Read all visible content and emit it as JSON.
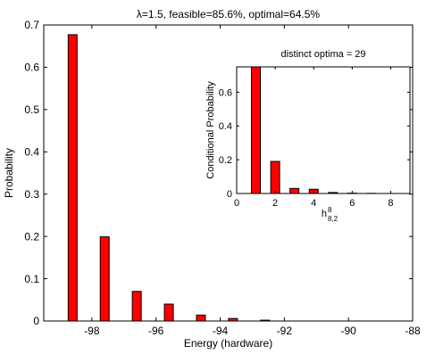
{
  "chart_data": [
    {
      "type": "bar",
      "title": "λ=1.5, feasible=85.6%, optimal=64.5%",
      "xlabel": "Energy (hardware)",
      "ylabel": "Probability",
      "xlim": [
        -99.5,
        -88
      ],
      "ylim": [
        0,
        0.7
      ],
      "xticks": [
        -98,
        -96,
        -94,
        -92,
        -90,
        -88
      ],
      "xtick_labels": [
        "-98",
        "-96",
        "-94",
        "-92",
        "-90",
        "-88"
      ],
      "yticks": [
        0,
        0.1,
        0.2,
        0.3,
        0.4,
        0.5,
        0.6,
        0.7
      ],
      "ytick_labels": [
        "0",
        "0.1",
        "0.2",
        "0.3",
        "0.4",
        "0.5",
        "0.6",
        "0.7"
      ],
      "bar_color": "#ff0000",
      "grid": false,
      "x": [
        -99.1,
        -98.6,
        -98.1,
        -97.6,
        -97.1,
        -96.6,
        -96.1,
        -95.6,
        -95.1,
        -94.6,
        -94.1,
        -93.6,
        -93.1,
        -92.6,
        -92.1,
        -91.6,
        -91.1,
        -90.6,
        -90.1,
        -89.6,
        -89.1,
        -88.6
      ],
      "values": [
        0.0,
        0.677,
        0.0,
        0.199,
        0.0,
        0.07,
        0.0,
        0.04,
        0.0,
        0.014,
        0.0,
        0.006,
        0.0,
        0.002,
        0.0,
        0.0,
        0.0,
        0.0,
        0.0,
        0.0,
        0.0,
        0.0
      ]
    },
    {
      "type": "bar",
      "title": "distinct optima = 29",
      "xlabel_main": "h",
      "xlabel_sup": "8",
      "xlabel_sub": "8,2",
      "ylabel": "Conditional Probability",
      "xlim": [
        0,
        9
      ],
      "ylim": [
        0,
        0.75
      ],
      "xticks": [
        0,
        2,
        4,
        6,
        8
      ],
      "xtick_labels": [
        "0",
        "2",
        "4",
        "6",
        "8"
      ],
      "yticks": [
        0,
        0.2,
        0.4,
        0.6
      ],
      "ytick_labels": [
        "0",
        "0.2",
        "0.4",
        "0.6"
      ],
      "bar_color": "#ff0000",
      "grid": false,
      "x": [
        1,
        2,
        3,
        4,
        5,
        6,
        7,
        8
      ],
      "values": [
        0.75,
        0.19,
        0.03,
        0.025,
        0.006,
        0.002,
        0.001,
        0.0
      ]
    }
  ]
}
